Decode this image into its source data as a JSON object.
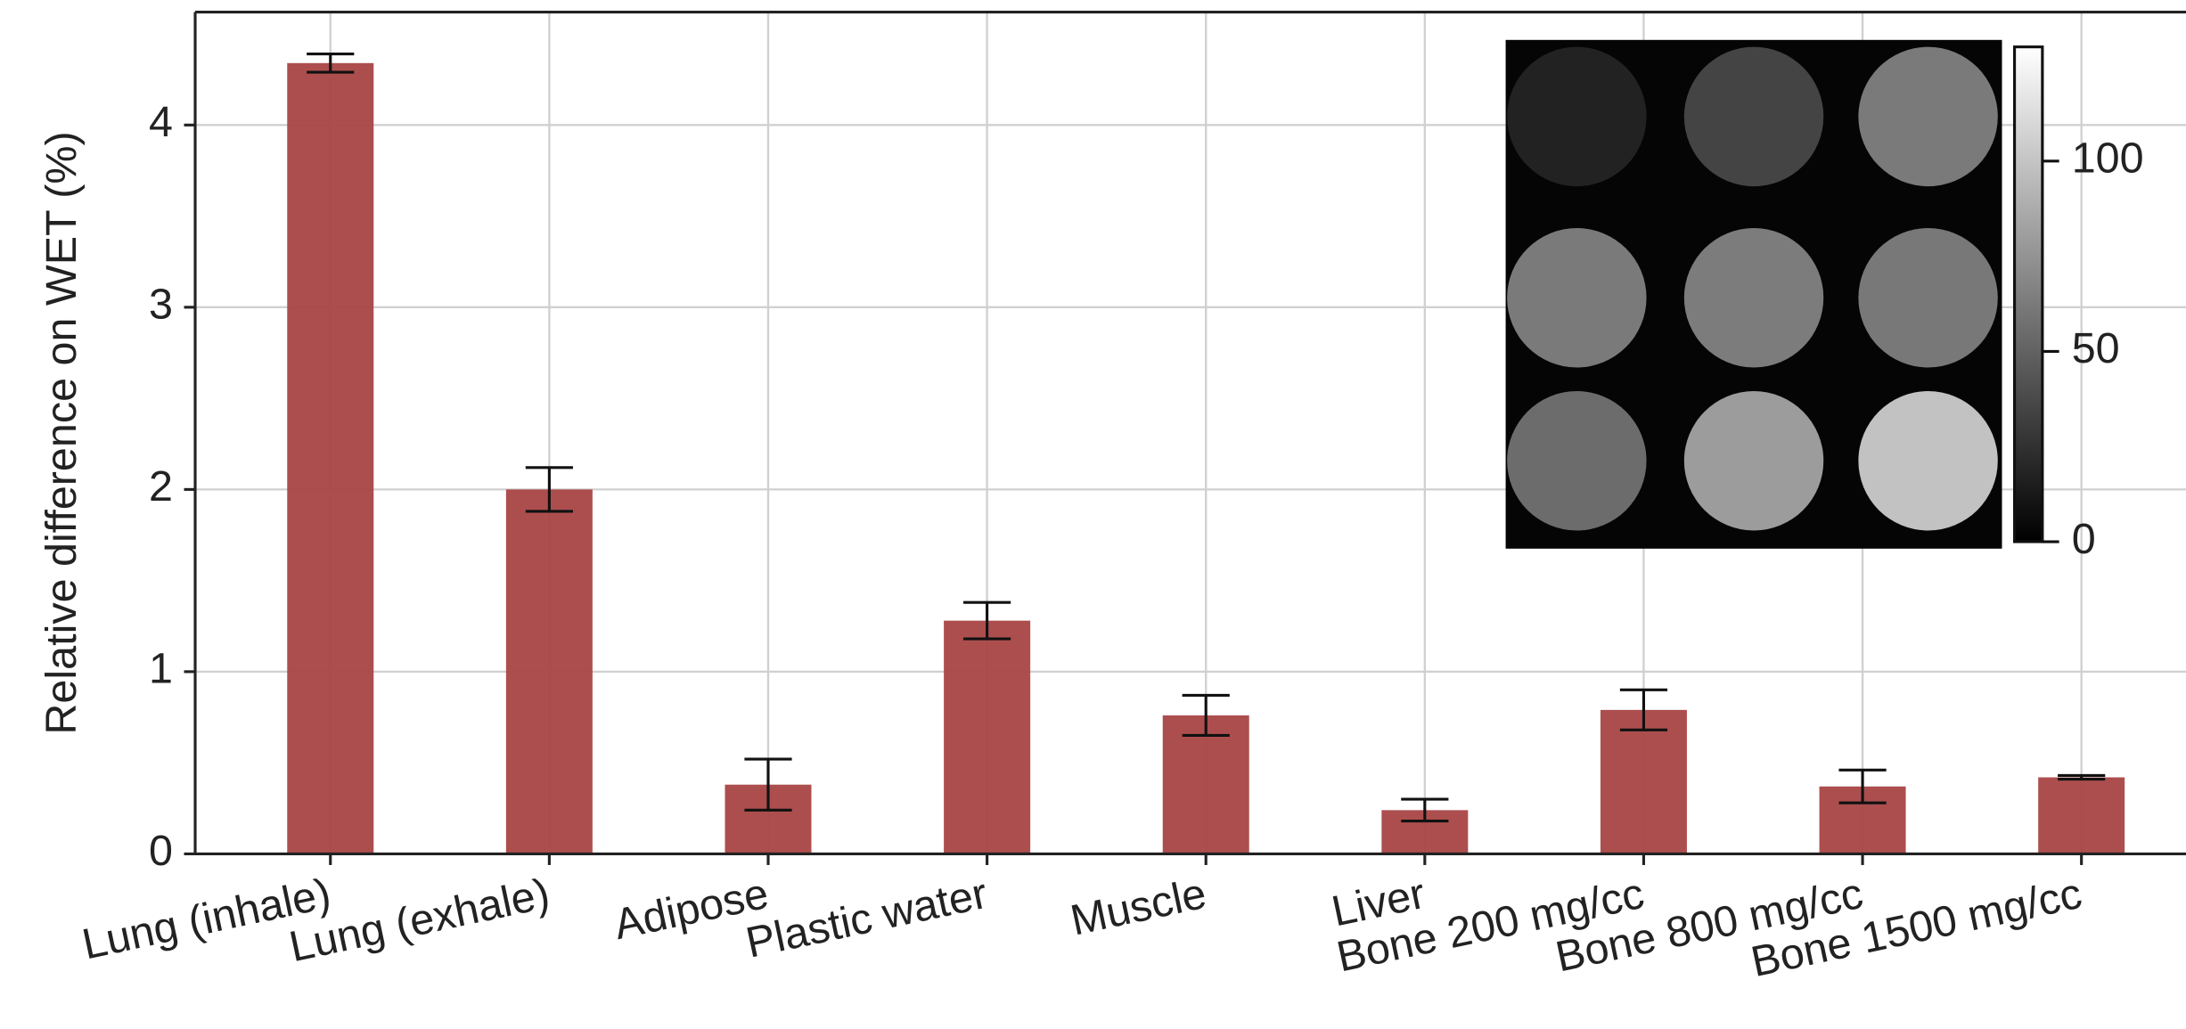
{
  "chart_data": {
    "type": "bar",
    "y_label": "Relative difference on WET (%)",
    "categories": [
      "Lung (inhale)",
      "Lung (exhale)",
      "Adipose",
      "Plastic water",
      "Muscle",
      "Liver",
      "Bone 200 mg/cc",
      "Bone 800 mg/cc",
      "Bone 1500 mg/cc"
    ],
    "series": [
      {
        "color": "#a94545",
        "values": [
          4.34,
          2.0,
          0.38,
          1.28,
          0.76,
          0.24,
          0.79,
          0.37,
          0.42
        ],
        "errors": [
          0.05,
          0.12,
          0.14,
          0.1,
          0.11,
          0.06,
          0.11,
          0.09,
          0.01
        ]
      }
    ],
    "ylim": [
      0,
      4.62
    ],
    "yticks": [
      0,
      1,
      2,
      3,
      4
    ],
    "grid": true,
    "inset": {
      "colorbar_lim": [
        0,
        130
      ],
      "colorbar_ticks": [
        0,
        50,
        100
      ]
    }
  }
}
